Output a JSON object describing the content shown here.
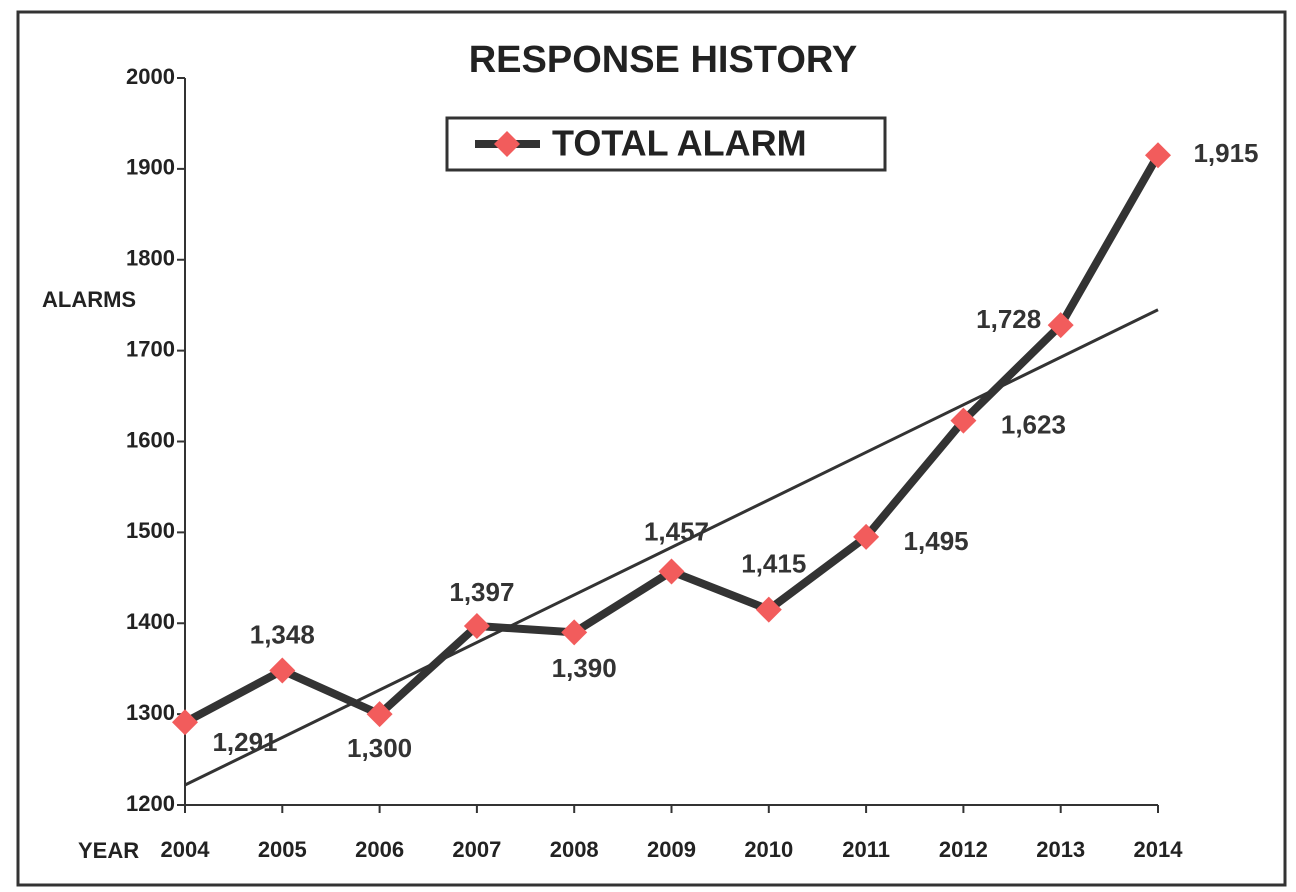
{
  "chart_data": {
    "type": "line",
    "title": "RESPONSE HISTORY",
    "x_label": "YEAR",
    "y_label": "ALARMS",
    "categories": [
      "2004",
      "2005",
      "2006",
      "2007",
      "2008",
      "2009",
      "2010",
      "2011",
      "2012",
      "2013",
      "2014"
    ],
    "series": [
      {
        "name": "TOTAL ALARM",
        "color": "#f25c5c",
        "line_color": "#333333",
        "values": [
          1291,
          1348,
          1300,
          1397,
          1390,
          1457,
          1415,
          1495,
          1623,
          1728,
          1915
        ],
        "value_labels": [
          "1,291",
          "1,348",
          "1,300",
          "1,397",
          "1,390",
          "1,457",
          "1,415",
          "1,495",
          "1,623",
          "1,728",
          "1,915"
        ]
      }
    ],
    "trendline": {
      "color": "#333333",
      "values": [
        1222,
        1745
      ]
    },
    "ylim": [
      1200,
      2000
    ],
    "yticks": [
      1200,
      1300,
      1400,
      1500,
      1600,
      1700,
      1800,
      1900,
      2000
    ]
  }
}
